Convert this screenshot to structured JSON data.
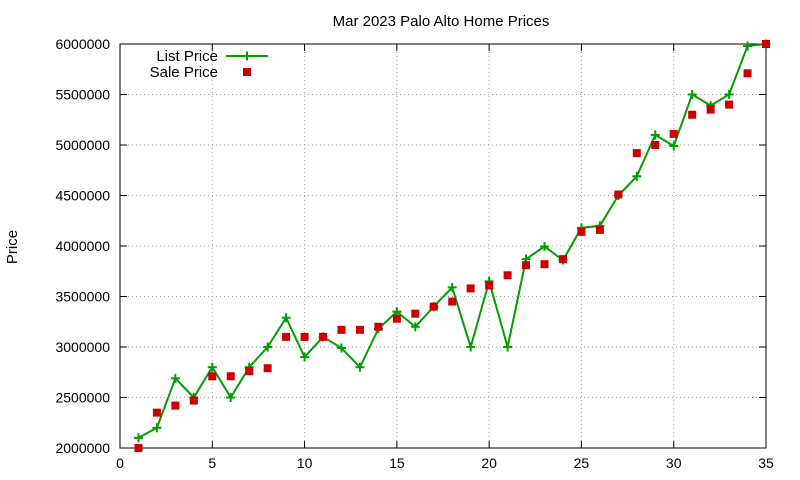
{
  "chart_data": {
    "type": "line",
    "title": "Mar 2023 Palo Alto Home Prices",
    "xlabel": "",
    "ylabel": "Price",
    "xlim": [
      0,
      35
    ],
    "ylim": [
      2000000,
      6000000
    ],
    "xticks": [
      0,
      5,
      10,
      15,
      20,
      25,
      30,
      35
    ],
    "yticks": [
      2000000,
      2500000,
      3000000,
      3500000,
      4000000,
      4500000,
      5000000,
      5500000,
      6000000
    ],
    "grid": true,
    "legend_position": "top-left",
    "series": [
      {
        "name": "List Price",
        "style": "linespoints",
        "color": "#009e00",
        "x": [
          1,
          2,
          3,
          4,
          5,
          6,
          7,
          8,
          9,
          10,
          11,
          12,
          13,
          14,
          15,
          16,
          17,
          18,
          19,
          20,
          21,
          22,
          23,
          24,
          25,
          26,
          27,
          28,
          29,
          30,
          31,
          32,
          33,
          34,
          35
        ],
        "values": [
          2100000,
          2200000,
          2690000,
          2500000,
          2800000,
          2500000,
          2800000,
          3000000,
          3290000,
          2900000,
          3100000,
          2990000,
          2800000,
          3180000,
          3350000,
          3200000,
          3400000,
          3590000,
          3000000,
          3650000,
          3000000,
          3870000,
          3995000,
          3860000,
          4180000,
          4200000,
          4500000,
          4690000,
          5100000,
          4990000,
          5500000,
          5390000,
          5500000,
          5980000,
          6000000
        ]
      },
      {
        "name": "Sale Price",
        "style": "points",
        "color": "#cc0000",
        "x": [
          1,
          2,
          3,
          4,
          5,
          6,
          7,
          8,
          9,
          10,
          11,
          12,
          13,
          14,
          15,
          16,
          17,
          18,
          19,
          20,
          21,
          22,
          23,
          24,
          25,
          26,
          27,
          28,
          29,
          30,
          31,
          32,
          33,
          34,
          35
        ],
        "values": [
          2000000,
          2350000,
          2420000,
          2470000,
          2710000,
          2710000,
          2760000,
          2790000,
          3100000,
          3100000,
          3100000,
          3170000,
          3170000,
          3200000,
          3280000,
          3330000,
          3400000,
          3450000,
          3580000,
          3610000,
          3710000,
          3810000,
          3820000,
          3870000,
          4140000,
          4160000,
          4510000,
          4920000,
          5000000,
          5110000,
          5300000,
          5350000,
          5400000,
          5710000,
          6000000
        ]
      }
    ]
  }
}
